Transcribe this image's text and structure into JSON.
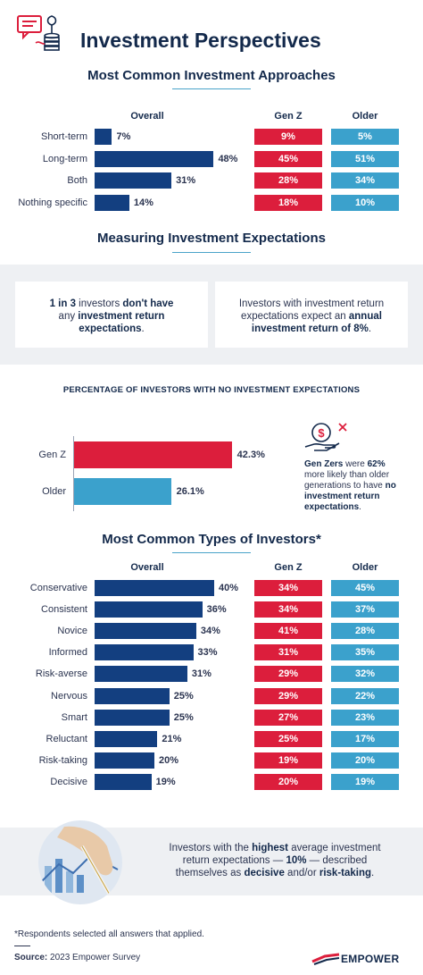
{
  "title": "Investment Perspectives",
  "section1": {
    "heading": "Most Common Investment Approaches",
    "col_overall": "Overall",
    "col_genz": "Gen Z",
    "col_older": "Older"
  },
  "section2": {
    "heading": "Measuring Investment Expectations",
    "card1": {
      "p1": "1 in 3 ",
      "b1": "investors ",
      "b2": "don't have",
      "p2": "any ",
      "b3": "investment return",
      "b4": "expectations",
      "p3": "."
    },
    "card2": {
      "p1": "Investors with investment return",
      "p2": "expectations expect an ",
      "b1": "annual",
      "b2": "investment return of 8%",
      "p3": "."
    }
  },
  "section3": {
    "heading": "PERCENTAGE OF INVESTORS WITH NO INVESTMENT EXPECTATIONS",
    "note": {
      "b1": "Gen Zers",
      "p1": " were ",
      "b2": "62%",
      "p2": "more likely than older",
      "p3": "generations to have ",
      "b3": "no",
      "b4": "investment return",
      "b5": "expectations",
      "p4": "."
    }
  },
  "section4": {
    "heading": "Most Common Types of Investors*",
    "col_overall": "Overall",
    "col_genz": "Gen Z",
    "col_older": "Older"
  },
  "insight": {
    "p1": "Investors with the ",
    "b1": "highest",
    "p2": " average investment",
    "p3": "return expectations — ",
    "b2": "10%",
    "p4": " — described",
    "p5": "themselves as ",
    "b3": "decisive",
    "p6": " and/or ",
    "b4": "risk-taking",
    "p7": "."
  },
  "footnote": "*Respondents selected all answers that applied.",
  "source_label": "Source:",
  "source_text": " 2023 Empower Survey",
  "brand": "EMPOWER",
  "colors": {
    "navy": "#133f80",
    "red": "#dc1e3c",
    "blue": "#3ba1cc"
  },
  "chart_data": [
    {
      "type": "bar",
      "title": "Most Common Investment Approaches",
      "categories": [
        "Short-term",
        "Long-term",
        "Both",
        "Nothing specific"
      ],
      "series": [
        {
          "name": "Overall",
          "values": [
            7,
            48,
            31,
            14
          ]
        },
        {
          "name": "Gen Z",
          "values": [
            9,
            45,
            28,
            18
          ]
        },
        {
          "name": "Older",
          "values": [
            5,
            51,
            34,
            10
          ]
        }
      ],
      "labels": {
        "Overall": [
          "7%",
          "48%",
          "31%",
          "14%"
        ],
        "Gen Z": [
          "9%",
          "45%",
          "28%",
          "18%"
        ],
        "Older": [
          "5%",
          "51%",
          "34%",
          "10%"
        ]
      }
    },
    {
      "type": "bar",
      "title": "PERCENTAGE OF INVESTORS WITH NO INVESTMENT EXPECTATIONS",
      "categories": [
        "Gen Z",
        "Older"
      ],
      "values": [
        42.3,
        26.1
      ],
      "labels": [
        "42.3%",
        "26.1%"
      ]
    },
    {
      "type": "bar",
      "title": "Most Common Types of Investors*",
      "categories": [
        "Conservative",
        "Consistent",
        "Novice",
        "Informed",
        "Risk-averse",
        "Nervous",
        "Smart",
        "Reluctant",
        "Risk-taking",
        "Decisive"
      ],
      "series": [
        {
          "name": "Overall",
          "values": [
            40,
            36,
            34,
            33,
            31,
            25,
            25,
            21,
            20,
            19
          ]
        },
        {
          "name": "Gen Z",
          "values": [
            34,
            34,
            41,
            31,
            29,
            29,
            27,
            25,
            19,
            20
          ]
        },
        {
          "name": "Older",
          "values": [
            45,
            37,
            28,
            35,
            32,
            22,
            23,
            17,
            20,
            19
          ]
        }
      ],
      "labels": {
        "Overall": [
          "40%",
          "36%",
          "34%",
          "33%",
          "31%",
          "25%",
          "25%",
          "21%",
          "20%",
          "19%"
        ],
        "Gen Z": [
          "34%",
          "34%",
          "41%",
          "31%",
          "29%",
          "29%",
          "27%",
          "25%",
          "19%",
          "20%"
        ],
        "Older": [
          "45%",
          "37%",
          "28%",
          "35%",
          "32%",
          "22%",
          "23%",
          "17%",
          "20%",
          "19%"
        ]
      }
    }
  ]
}
